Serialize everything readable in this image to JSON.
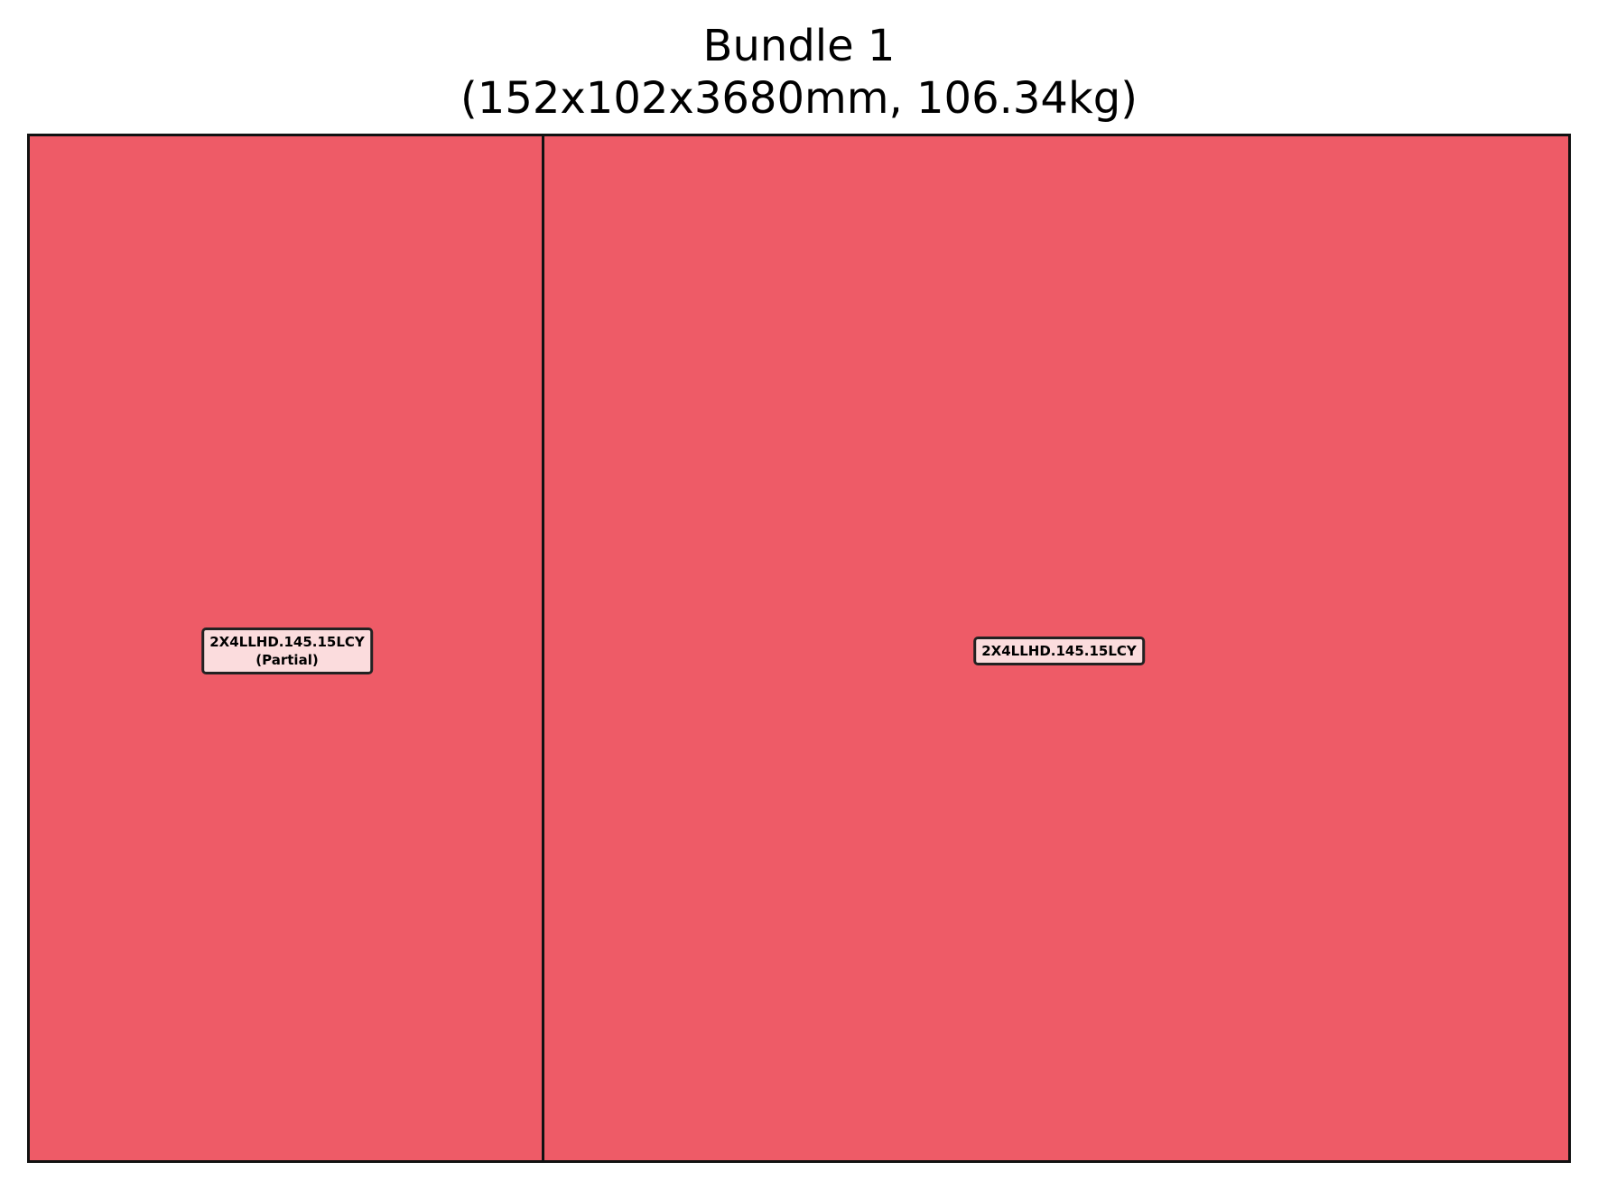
{
  "title": {
    "line1": "Bundle 1",
    "line2": "(152x102x3680mm, 106.34kg)"
  },
  "colors": {
    "piece_fill": "#ee5b67",
    "label_fill": "#fbdcdd",
    "border": "#111111"
  },
  "pieces": [
    {
      "label": "2X4LLHD.145.15LCY",
      "note": "(Partial)"
    },
    {
      "label": "2X4LLHD.145.15LCY",
      "note": ""
    }
  ]
}
